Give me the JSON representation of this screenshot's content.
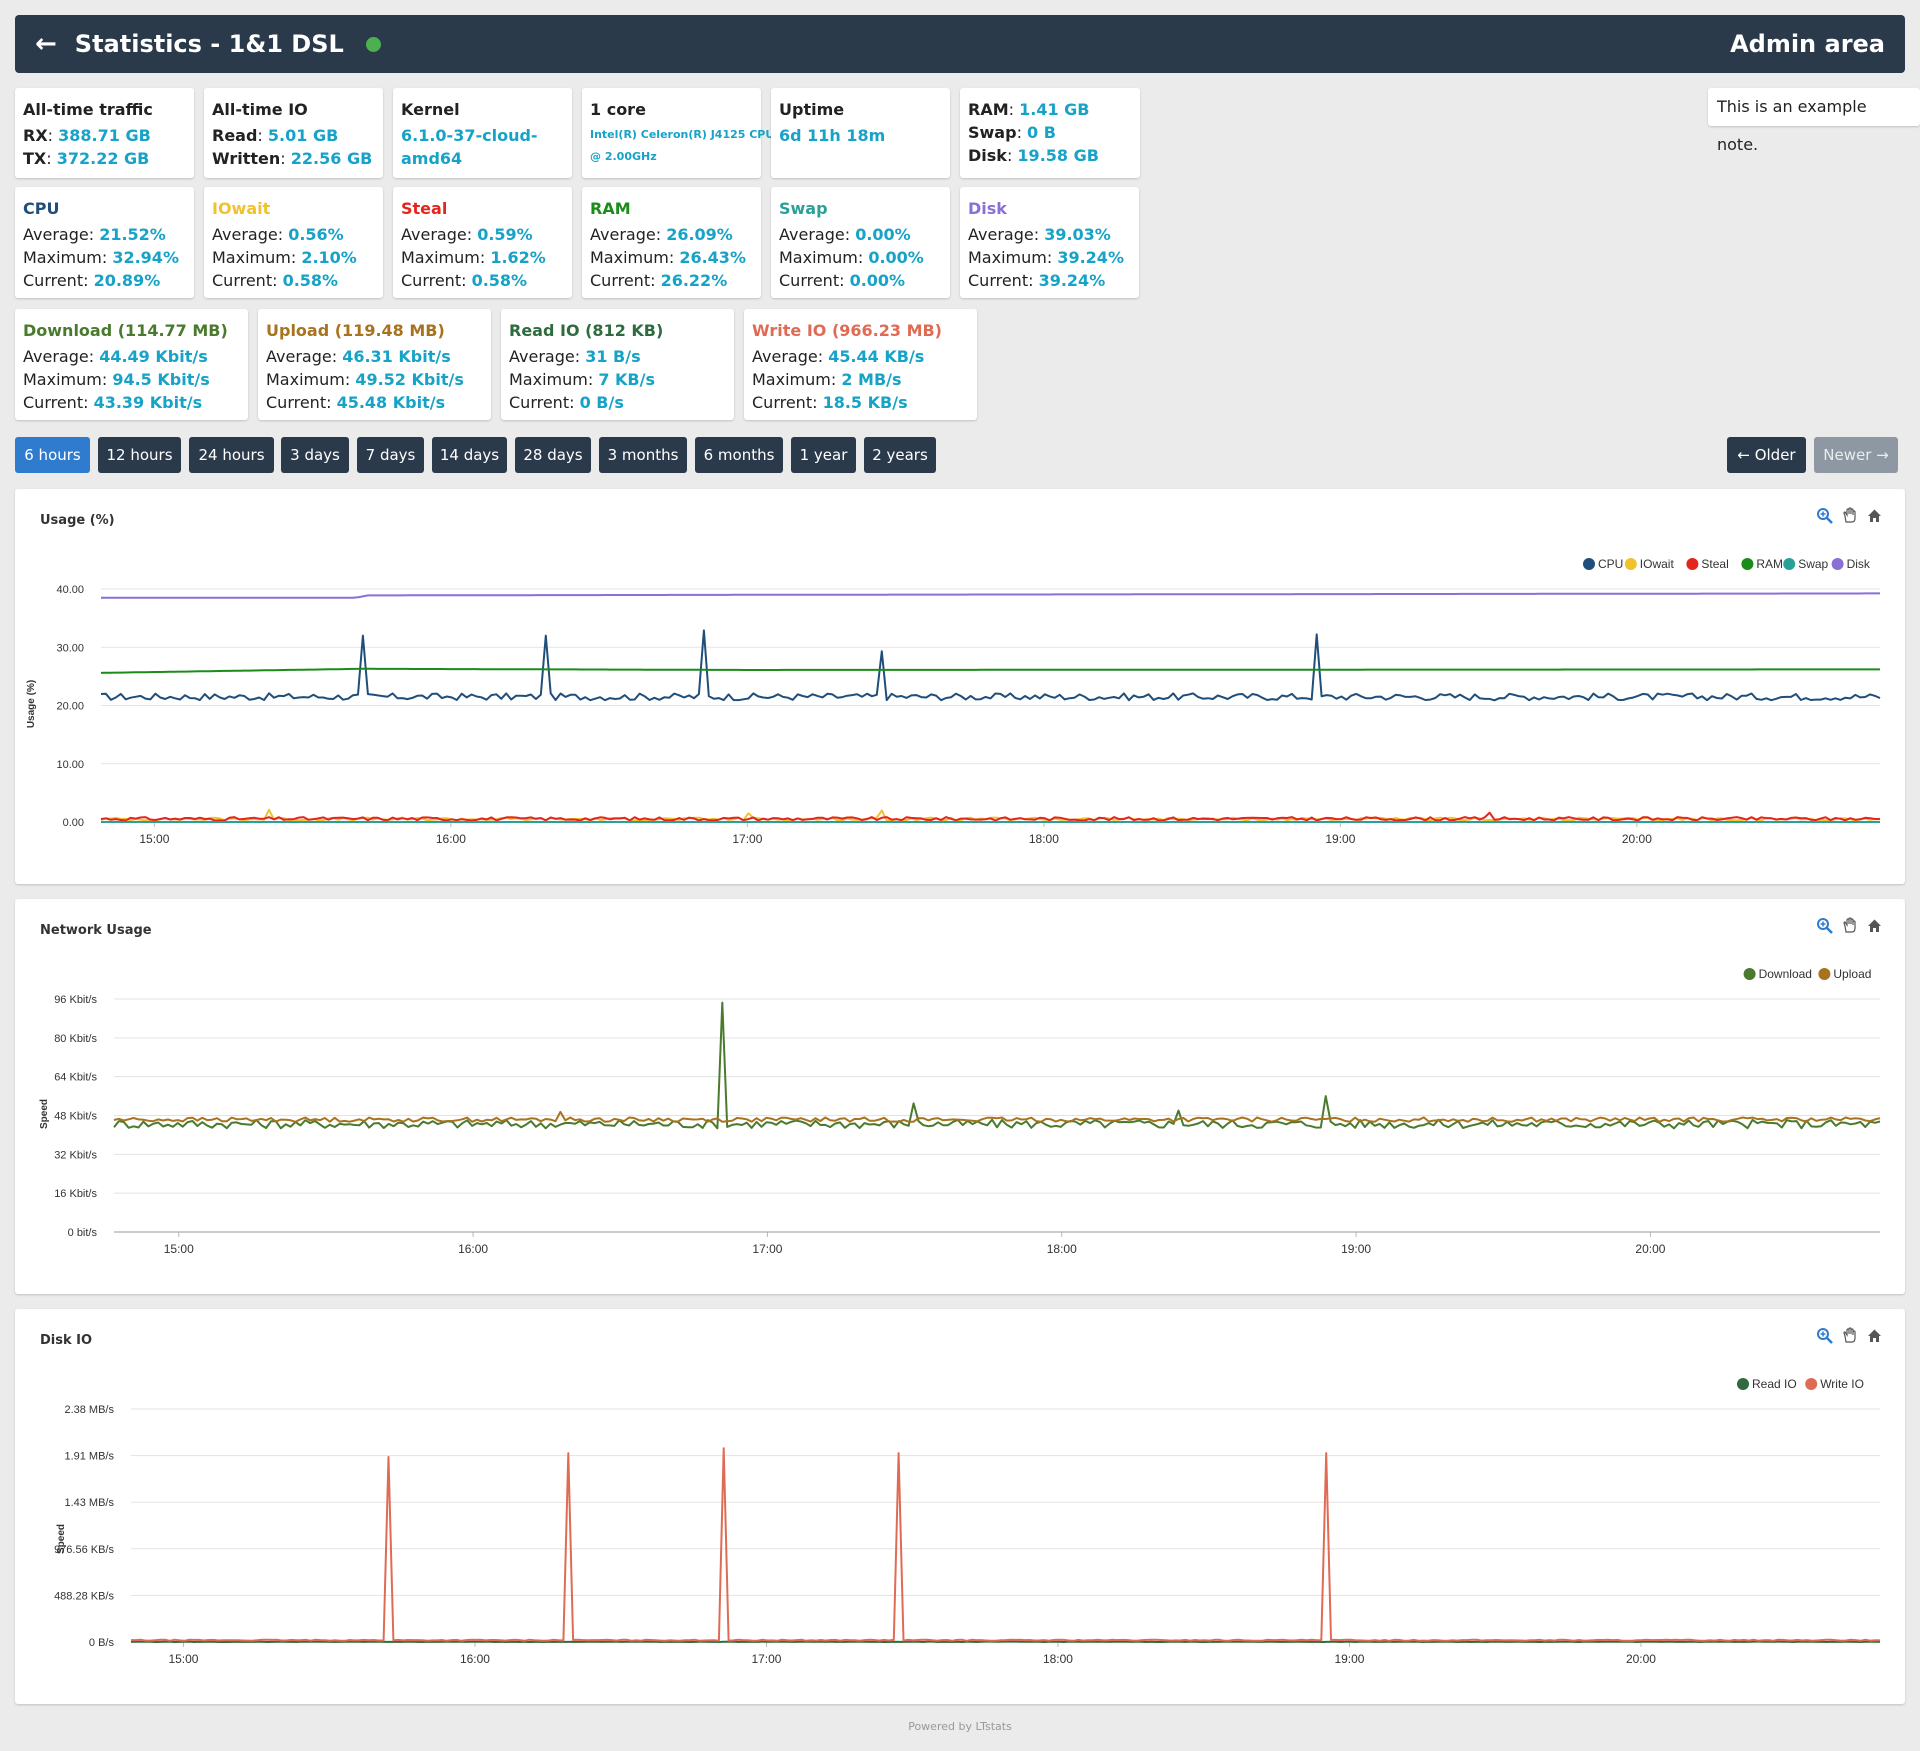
{
  "header": {
    "back_icon": "←",
    "title": "Statistics - 1&1 DSL",
    "status_color": "#4caf50",
    "admin_label": "Admin area"
  },
  "note": "This is an example note.",
  "info": {
    "traffic": {
      "title": "All-time traffic",
      "rx_label": "RX",
      "rx": "388.71 GB",
      "tx_label": "TX",
      "tx": "372.22 GB"
    },
    "io": {
      "title": "All-time IO",
      "read_label": "Read",
      "read": "5.01 GB",
      "written_label": "Written",
      "written": "22.56 GB"
    },
    "kernel": {
      "title": "Kernel",
      "value_line1": "6.1.0-37-cloud-",
      "value_line2": "amd64"
    },
    "cpu": {
      "title": "1 core",
      "model_line1": "Intel(R) Celeron(R) J4125 CPU",
      "model_line2": "@ 2.00GHz"
    },
    "uptime": {
      "title": "Uptime",
      "value": "6d 11h 18m"
    },
    "mem": {
      "ram_label": "RAM",
      "ram": "1.41 GB",
      "swap_label": "Swap",
      "swap": "0 B",
      "disk_label": "Disk",
      "disk": "19.58 GB"
    }
  },
  "labels": {
    "average": "Average:",
    "maximum": "Maximum:",
    "current": "Current:"
  },
  "usage_stats": [
    {
      "name": "CPU",
      "color": "#1f4e7a",
      "average": "21.52%",
      "maximum": "32.94%",
      "current": "20.89%"
    },
    {
      "name": "IOwait",
      "color": "#f2c12e",
      "average": "0.56%",
      "maximum": "2.10%",
      "current": "0.58%"
    },
    {
      "name": "Steal",
      "color": "#e3261d",
      "average": "0.59%",
      "maximum": "1.62%",
      "current": "0.58%"
    },
    {
      "name": "RAM",
      "color": "#1a8c1a",
      "average": "26.09%",
      "maximum": "26.43%",
      "current": "26.22%"
    },
    {
      "name": "Swap",
      "color": "#2aa198",
      "average": "0.00%",
      "maximum": "0.00%",
      "current": "0.00%"
    },
    {
      "name": "Disk",
      "color": "#8a6fd6",
      "average": "39.03%",
      "maximum": "39.24%",
      "current": "39.24%"
    }
  ],
  "transfer_stats": [
    {
      "name": "Download (114.77 MB)",
      "color": "#4a7a2e",
      "average": "44.49 Kbit/s",
      "maximum": "94.5 Kbit/s",
      "current": "43.39 Kbit/s"
    },
    {
      "name": "Upload (119.48 MB)",
      "color": "#a8731f",
      "average": "46.31 Kbit/s",
      "maximum": "49.52 Kbit/s",
      "current": "45.48 Kbit/s"
    },
    {
      "name": "Read IO (812 KB)",
      "color": "#2f6b3f",
      "average": "31 B/s",
      "maximum": "7 KB/s",
      "current": "0 B/s"
    },
    {
      "name": "Write IO (966.23 MB)",
      "color": "#e06b55",
      "average": "45.44 KB/s",
      "maximum": "2 MB/s",
      "current": "18.5 KB/s"
    }
  ],
  "ranges": [
    "6 hours",
    "12 hours",
    "24 hours",
    "3 days",
    "7 days",
    "14 days",
    "28 days",
    "3 months",
    "6 months",
    "1 year",
    "2 years"
  ],
  "active_range": "6 hours",
  "nav": {
    "older": "← Older",
    "newer": "Newer →"
  },
  "chart_data": [
    {
      "type": "line",
      "title": "Usage (%)",
      "ylabel": "Usage (%)",
      "ylim": [
        0,
        40
      ],
      "yticks": [
        "0.00",
        "10.00",
        "20.00",
        "30.00",
        "40.00"
      ],
      "xticks": [
        "15:00",
        "16:00",
        "17:00",
        "18:00",
        "19:00",
        "20:00"
      ],
      "xrange_hours": [
        14.82,
        20.82
      ],
      "legend_position": "top-right",
      "series": [
        {
          "name": "CPU",
          "color": "#1f4e7a",
          "baseline": 21.5,
          "noise": 0.6,
          "spikes": [
            [
              15.7,
              32
            ],
            [
              16.32,
              32
            ],
            [
              16.85,
              32.9
            ],
            [
              17.45,
              29.3
            ],
            [
              18.92,
              32.2
            ]
          ]
        },
        {
          "name": "IOwait",
          "color": "#f2c12e",
          "baseline": 0.5,
          "noise": 0.25,
          "spikes": [
            [
              15.38,
              2.1
            ],
            [
              17.0,
              1.5
            ],
            [
              17.45,
              2.0
            ]
          ]
        },
        {
          "name": "Steal",
          "color": "#e3261d",
          "baseline": 0.55,
          "noise": 0.3,
          "spikes": [
            [
              19.5,
              1.6
            ]
          ]
        },
        {
          "name": "RAM",
          "color": "#1a8c1a",
          "step": [
            [
              14.82,
              25.6
            ],
            [
              15.7,
              26.3
            ],
            [
              17.0,
              26.1
            ],
            [
              20.82,
              26.2
            ]
          ]
        },
        {
          "name": "Swap",
          "color": "#2aa198",
          "constant": 0
        },
        {
          "name": "Disk",
          "color": "#8a6fd6",
          "step": [
            [
              14.82,
              38.5
            ],
            [
              15.68,
              38.5
            ],
            [
              15.72,
              38.9
            ],
            [
              17.0,
              39.0
            ],
            [
              20.82,
              39.24
            ]
          ]
        }
      ]
    },
    {
      "type": "line",
      "title": "Network Usage",
      "ylabel": "Speed",
      "ylim": [
        0,
        96
      ],
      "yticks": [
        "0 bit/s",
        "16 Kbit/s",
        "32 Kbit/s",
        "48 Kbit/s",
        "64 Kbit/s",
        "80 Kbit/s",
        "96 Kbit/s"
      ],
      "xticks": [
        "15:00",
        "16:00",
        "17:00",
        "18:00",
        "19:00",
        "20:00"
      ],
      "xrange_hours": [
        14.78,
        20.78
      ],
      "legend_position": "top-right",
      "series": [
        {
          "name": "Download",
          "color": "#4a7a2e",
          "baseline": 44.5,
          "noise": 1.8,
          "spikes": [
            [
              16.84,
              94.5
            ],
            [
              17.5,
              53
            ],
            [
              18.4,
              50
            ],
            [
              18.9,
              56
            ]
          ]
        },
        {
          "name": "Upload",
          "color": "#a8731f",
          "baseline": 46.3,
          "noise": 0.9,
          "spikes": [
            [
              16.3,
              49.5
            ]
          ]
        }
      ]
    },
    {
      "type": "line",
      "title": "Disk IO",
      "ylabel": "Speed",
      "ylim": [
        0,
        2.38
      ],
      "yticks": [
        "0 B/s",
        "488.28 KB/s",
        "976.56 KB/s",
        "1.43 MB/s",
        "1.91 MB/s",
        "2.38 MB/s"
      ],
      "xticks": [
        "15:00",
        "16:00",
        "17:00",
        "18:00",
        "19:00",
        "20:00"
      ],
      "xrange_hours": [
        14.82,
        20.82
      ],
      "legend_position": "top-right",
      "series": [
        {
          "name": "Read IO",
          "color": "#2f6b3f",
          "baseline": 0.002,
          "noise": 0.002,
          "spikes": []
        },
        {
          "name": "Write IO",
          "color": "#e06b55",
          "baseline": 0.018,
          "noise": 0.006,
          "spikes": [
            [
              15.7,
              1.89
            ],
            [
              16.32,
              1.93
            ],
            [
              16.85,
              1.98
            ],
            [
              17.45,
              1.93
            ],
            [
              18.92,
              1.93
            ]
          ]
        }
      ]
    }
  ],
  "footer": "Powered by LTstats"
}
